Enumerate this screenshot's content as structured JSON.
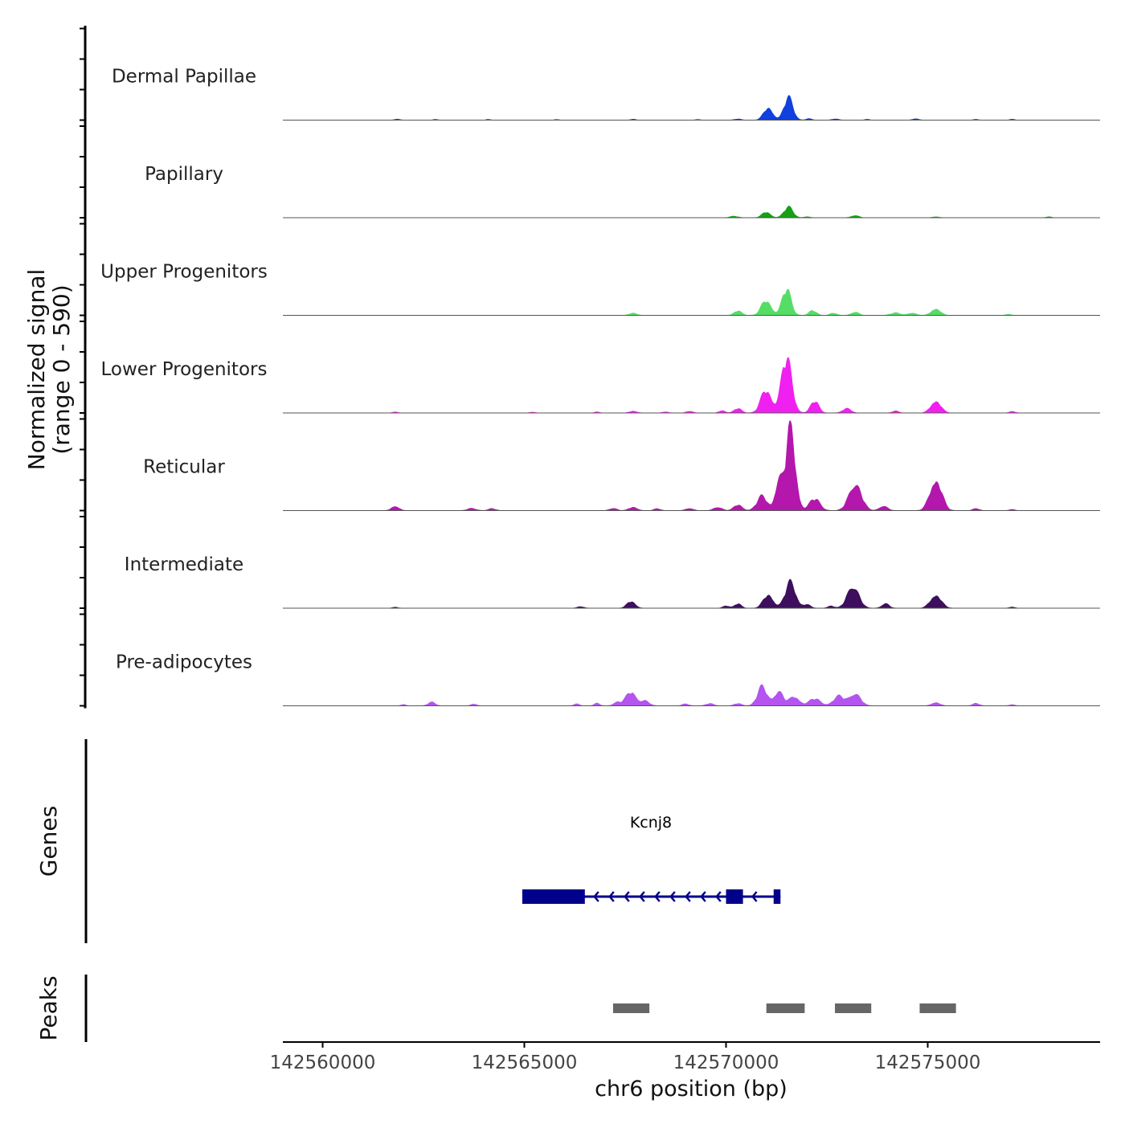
{
  "chart_data": {
    "type": "area",
    "title": "",
    "chromosome": "chr6",
    "x_range": [
      142559000,
      142579300
    ],
    "xlabel": "chr6 position (bp)",
    "x_ticks": [
      142560000,
      142565000,
      142570000,
      142575000
    ],
    "x_tick_labels": [
      "142560000",
      "142565000",
      "142570000",
      "142575000"
    ],
    "ylabel_line1": "Normalized signal",
    "ylabel_line2": "(range 0 - 590)",
    "y_range": [
      0,
      590
    ],
    "coverage_tracks": [
      {
        "name": "Dermal Papillae",
        "color": "#1040DD",
        "peaks": [
          [
            142561850,
            0.5,
            60
          ],
          [
            142562800,
            0.3,
            50
          ],
          [
            142564100,
            0.3,
            50
          ],
          [
            142565800,
            0.3,
            50
          ],
          [
            142567700,
            0.4,
            60
          ],
          [
            142569300,
            0.3,
            50
          ],
          [
            142570300,
            0.5,
            80
          ],
          [
            142571050,
            5.5,
            110
          ],
          [
            142571550,
            9.5,
            110
          ],
          [
            142572050,
            0.6,
            70
          ],
          [
            142572700,
            0.5,
            80
          ],
          [
            142573500,
            0.3,
            60
          ],
          [
            142574700,
            0.5,
            80
          ],
          [
            142576200,
            0.3,
            60
          ],
          [
            142577100,
            0.4,
            60
          ]
        ]
      },
      {
        "name": "Papillary",
        "color": "#15A015",
        "peaks": [
          [
            142570200,
            0.6,
            100
          ],
          [
            142571000,
            2.5,
            100
          ],
          [
            142571550,
            4.5,
            110
          ],
          [
            142572000,
            0.4,
            70
          ],
          [
            142573200,
            1.0,
            90
          ],
          [
            142575200,
            0.4,
            80
          ],
          [
            142578000,
            0.4,
            60
          ]
        ]
      },
      {
        "name": "Upper Progenitors",
        "color": "#55DD66",
        "peaks": [
          [
            142567700,
            1.0,
            90
          ],
          [
            142570300,
            2.0,
            90
          ],
          [
            142571000,
            6.5,
            120
          ],
          [
            142571500,
            11.0,
            110
          ],
          [
            142572150,
            2.0,
            90
          ],
          [
            142572650,
            1.0,
            80
          ],
          [
            142573200,
            1.5,
            90
          ],
          [
            142574200,
            1.0,
            120
          ],
          [
            142574600,
            1.0,
            100
          ],
          [
            142575200,
            3.0,
            110
          ],
          [
            142577000,
            0.5,
            60
          ]
        ]
      },
      {
        "name": "Lower Progenitors",
        "color": "#F020F0",
        "peaks": [
          [
            142561800,
            0.5,
            60
          ],
          [
            142565200,
            0.4,
            60
          ],
          [
            142566800,
            0.4,
            60
          ],
          [
            142567700,
            0.8,
            90
          ],
          [
            142568500,
            0.5,
            70
          ],
          [
            142569100,
            0.8,
            80
          ],
          [
            142569900,
            1.0,
            80
          ],
          [
            142570300,
            2.0,
            90
          ],
          [
            142571000,
            10.0,
            130
          ],
          [
            142571500,
            23.0,
            130
          ],
          [
            142572200,
            5.0,
            100
          ],
          [
            142573000,
            2.0,
            100
          ],
          [
            142574200,
            0.8,
            80
          ],
          [
            142575200,
            5.5,
            120
          ],
          [
            142577100,
            0.7,
            70
          ]
        ]
      },
      {
        "name": "Reticular",
        "color": "#B417AC",
        "peaks": [
          [
            142561800,
            2.0,
            90
          ],
          [
            142563700,
            1.0,
            100
          ],
          [
            142564200,
            0.8,
            90
          ],
          [
            142567200,
            1.0,
            90
          ],
          [
            142567700,
            1.5,
            100
          ],
          [
            142568300,
            0.8,
            80
          ],
          [
            142569100,
            1.0,
            90
          ],
          [
            142569800,
            1.5,
            100
          ],
          [
            142570300,
            2.5,
            100
          ],
          [
            142570900,
            6.0,
            130
          ],
          [
            142571300,
            12.0,
            90
          ],
          [
            142571600,
            35.0,
            120
          ],
          [
            142572200,
            5.0,
            130
          ],
          [
            142573200,
            12.0,
            150
          ],
          [
            142573900,
            2.0,
            100
          ],
          [
            142575200,
            14.0,
            140
          ],
          [
            142576200,
            0.8,
            80
          ],
          [
            142577100,
            0.5,
            70
          ]
        ]
      },
      {
        "name": "Intermediate",
        "color": "#3D0F5C",
        "peaks": [
          [
            142561800,
            0.5,
            60
          ],
          [
            142566400,
            0.7,
            80
          ],
          [
            142567650,
            3.0,
            100
          ],
          [
            142570000,
            1.0,
            80
          ],
          [
            142570300,
            2.0,
            80
          ],
          [
            142571050,
            6.0,
            120
          ],
          [
            142571600,
            11.0,
            130
          ],
          [
            142572000,
            1.5,
            90
          ],
          [
            142572600,
            1.0,
            80
          ],
          [
            142573150,
            10.0,
            140
          ],
          [
            142573950,
            2.0,
            90
          ],
          [
            142575200,
            6.0,
            130
          ],
          [
            142577100,
            0.5,
            70
          ]
        ]
      },
      {
        "name": "Pre-adipocytes",
        "color": "#B355EE",
        "peaks": [
          [
            142562000,
            0.5,
            60
          ],
          [
            142562700,
            1.5,
            90
          ],
          [
            142563750,
            0.8,
            70
          ],
          [
            142566300,
            0.8,
            70
          ],
          [
            142566800,
            1.0,
            70
          ],
          [
            142567300,
            1.5,
            90
          ],
          [
            142567650,
            6.0,
            130
          ],
          [
            142568000,
            2.0,
            100
          ],
          [
            142569000,
            0.8,
            80
          ],
          [
            142569600,
            1.0,
            90
          ],
          [
            142570300,
            1.0,
            90
          ],
          [
            142570900,
            8.0,
            120
          ],
          [
            142571300,
            6.0,
            120
          ],
          [
            142571700,
            4.0,
            120
          ],
          [
            142572200,
            3.0,
            140
          ],
          [
            142572800,
            4.0,
            140
          ],
          [
            142573200,
            5.5,
            130
          ],
          [
            142575200,
            1.5,
            100
          ],
          [
            142576200,
            1.0,
            80
          ],
          [
            142577100,
            0.5,
            70
          ]
        ]
      }
    ],
    "genes_track": {
      "label": "Genes",
      "color": "#00008B",
      "genes": [
        {
          "name": "Kcnj8",
          "strand": "-",
          "start": 142564950,
          "end": 142571350,
          "exons": [
            [
              142564950,
              142566500
            ],
            [
              142570000,
              142570420
            ],
            [
              142571180,
              142571350
            ]
          ]
        }
      ]
    },
    "peaks_track": {
      "label": "Peaks",
      "color": "#666666",
      "regions": [
        [
          142567200,
          142568100
        ],
        [
          142571000,
          142571950
        ],
        [
          142572700,
          142573600
        ],
        [
          142574800,
          142575700
        ]
      ]
    }
  }
}
